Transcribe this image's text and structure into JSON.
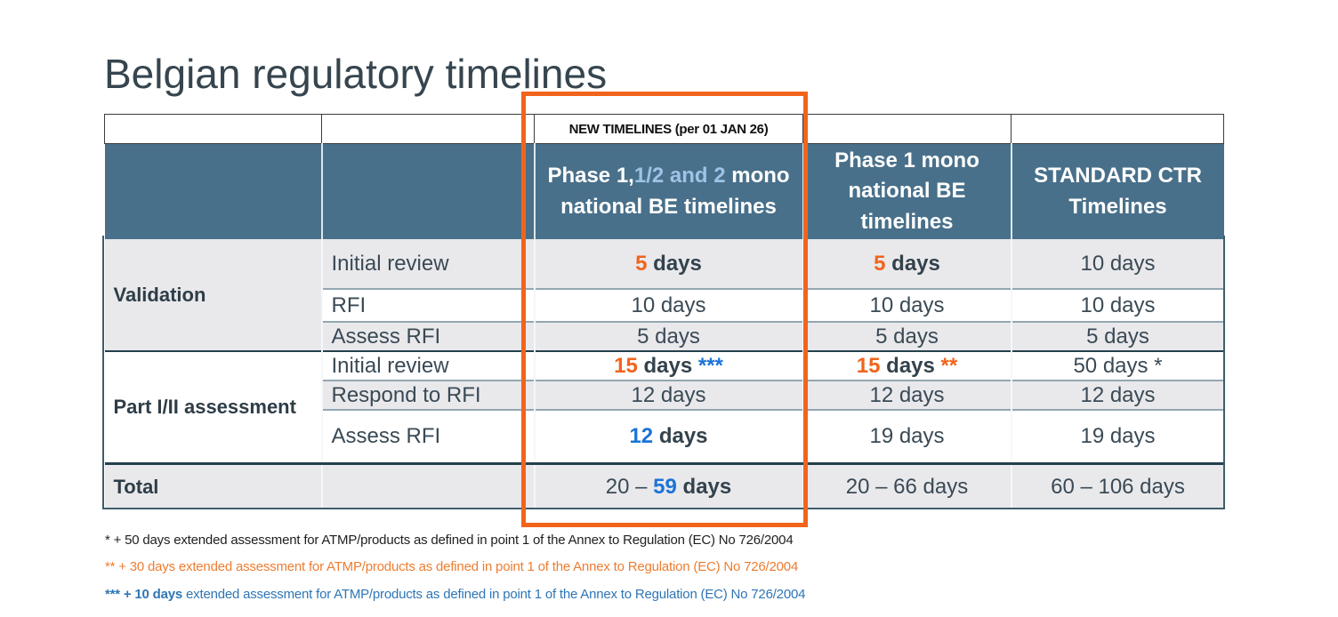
{
  "title": "Belgian regulatory timelines",
  "colors": {
    "header_bg": "#49708A",
    "header_highlight_text": "#9DC3E6",
    "accent_orange": "#F2641C",
    "accent_blue": "#1B74D6",
    "row_alt_bg": "#E9E9EC",
    "text_dark": "#36454E",
    "footnote_orange": "#ED7D31",
    "footnote_blue": "#2E75B6",
    "highlight_box": "#F2641C"
  },
  "table": {
    "banner": "NEW TIMELINES (per 01 JAN 26)",
    "header": [
      {
        "segments": []
      },
      {
        "segments": []
      },
      {
        "segments": [
          {
            "t": "Phase 1,",
            "s": "white"
          },
          {
            "t": "1/2 and 2",
            "s": "lightblue"
          },
          {
            "t": " mono national BE timelines",
            "s": "white"
          }
        ]
      },
      {
        "segments": [
          {
            "t": "Phase 1 mono national BE timelines",
            "s": "white"
          }
        ]
      },
      {
        "segments": [
          {
            "t": "STANDARD CTR Timelines",
            "s": "white"
          }
        ]
      }
    ],
    "rows": [
      {
        "group": {
          "label": "Validation",
          "span": 3
        },
        "label": "Initial review",
        "bg": "gray",
        "cells": [
          [
            {
              "t": "5",
              "s": "orange-bold"
            },
            {
              "t": " days",
              "s": "dark-bold"
            }
          ],
          [
            {
              "t": "5",
              "s": "orange-bold"
            },
            {
              "t": " days",
              "s": "dark-bold"
            }
          ],
          [
            {
              "t": "10 days",
              "s": "plain"
            }
          ]
        ]
      },
      {
        "label": "RFI",
        "bg": "white",
        "cells": [
          [
            {
              "t": "10 days",
              "s": "plain"
            }
          ],
          [
            {
              "t": "10 days",
              "s": "plain"
            }
          ],
          [
            {
              "t": "10 days",
              "s": "plain"
            }
          ]
        ]
      },
      {
        "label": "Assess RFI",
        "bg": "gray",
        "cells": [
          [
            {
              "t": "5 days",
              "s": "plain"
            }
          ],
          [
            {
              "t": "5 days",
              "s": "plain"
            }
          ],
          [
            {
              "t": "5 days",
              "s": "plain"
            }
          ]
        ]
      },
      {
        "group": {
          "label": "Part I/II assessment",
          "span": 3
        },
        "label": "Initial review",
        "bg": "white",
        "sep": "heavy",
        "cells": [
          [
            {
              "t": "15",
              "s": "orange-bold"
            },
            {
              "t": " days ",
              "s": "dark-bold"
            },
            {
              "t": "***",
              "s": "blue-bold"
            }
          ],
          [
            {
              "t": "15",
              "s": "orange-bold"
            },
            {
              "t": " days ",
              "s": "dark-bold"
            },
            {
              "t": "**",
              "s": "orange-bold"
            }
          ],
          [
            {
              "t": "50 days *",
              "s": "plain"
            }
          ]
        ]
      },
      {
        "label": "Respond to RFI",
        "bg": "gray",
        "cells": [
          [
            {
              "t": "12 days",
              "s": "plain"
            }
          ],
          [
            {
              "t": "12 days",
              "s": "plain"
            }
          ],
          [
            {
              "t": "12 days",
              "s": "plain"
            }
          ]
        ]
      },
      {
        "label": "Assess RFI",
        "bg": "white",
        "cells": [
          [
            {
              "t": "12",
              "s": "blue-bold"
            },
            {
              "t": " days",
              "s": "dark-bold"
            }
          ],
          [
            {
              "t": "19 days",
              "s": "plain"
            }
          ],
          [
            {
              "t": "19 days",
              "s": "plain"
            }
          ]
        ]
      },
      {
        "group": {
          "label": "Total",
          "span": 1
        },
        "label": "",
        "bg": "gray",
        "sep": "total",
        "cells": [
          [
            {
              "t": "20 – ",
              "s": "plain"
            },
            {
              "t": "59",
              "s": "blue-bold"
            },
            {
              "t": " days",
              "s": "dark-bold"
            }
          ],
          [
            {
              "t": "20 – 66 days",
              "s": "plain"
            }
          ],
          [
            {
              "t": "60 – 106 days",
              "s": "plain"
            }
          ]
        ]
      }
    ]
  },
  "footnotes": [
    {
      "segments": [
        {
          "t": "* + 50 days extended assessment for ATMP/products as defined in point 1 of the Annex to Regulation (EC) No 726/2004",
          "s": "fn-black"
        }
      ]
    },
    {
      "segments": [
        {
          "t": "** + 30 days extended assessment for ATMP/products as defined in point 1 of the Annex to Regulation (EC) No 726/2004",
          "s": "fn-orange"
        }
      ]
    },
    {
      "segments": [
        {
          "t": "*** + 10 days",
          "s": "fn-blue-bold"
        },
        {
          "t": " extended assessment for ATMP/products as defined in point 1 of the Annex to Regulation (EC) No 726/2004",
          "s": "fn-blue"
        }
      ]
    }
  ]
}
